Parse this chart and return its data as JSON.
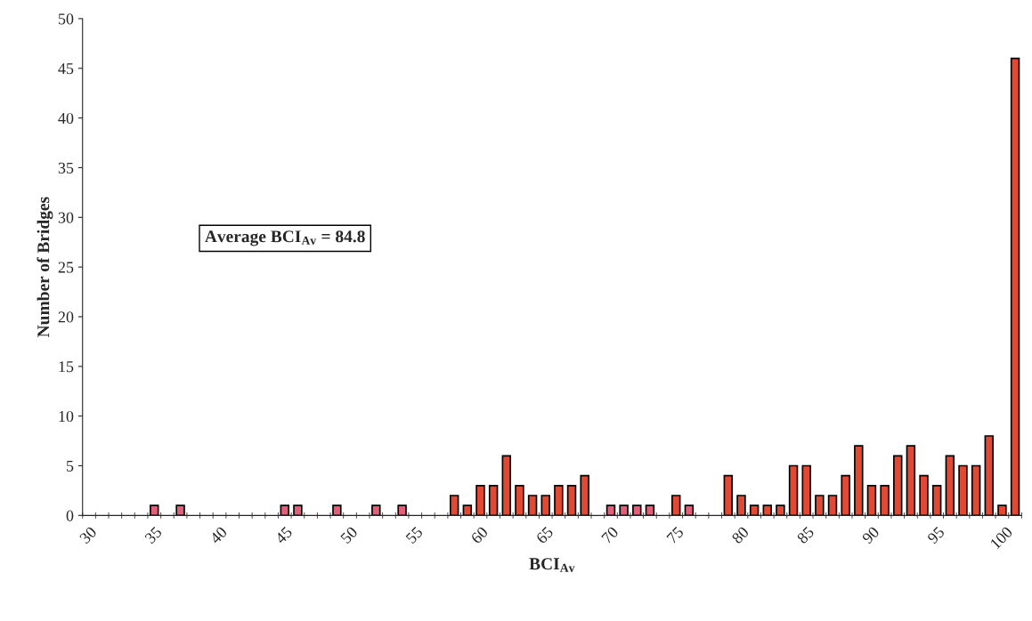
{
  "chart_data": {
    "type": "bar",
    "categories": [
      "30",
      null,
      null,
      null,
      null,
      "35",
      null,
      null,
      null,
      null,
      "40",
      null,
      null,
      null,
      null,
      "45",
      null,
      null,
      null,
      null,
      "50",
      null,
      null,
      null,
      null,
      "55",
      null,
      null,
      null,
      null,
      "60",
      null,
      null,
      null,
      null,
      "65",
      null,
      null,
      null,
      null,
      "70",
      null,
      null,
      null,
      null,
      "75",
      null,
      null,
      null,
      null,
      "80",
      null,
      null,
      null,
      null,
      "85",
      null,
      null,
      null,
      null,
      "90",
      null,
      null,
      null,
      null,
      "95",
      null,
      null,
      null,
      null,
      "100",
      null
    ],
    "values": [
      0,
      0,
      0,
      0,
      0,
      1,
      0,
      1,
      0,
      0,
      0,
      0,
      0,
      0,
      0,
      1,
      1,
      0,
      0,
      1,
      0,
      0,
      1,
      0,
      1,
      0,
      0,
      0,
      2,
      1,
      3,
      3,
      6,
      3,
      2,
      2,
      3,
      3,
      4,
      0,
      1,
      1,
      1,
      1,
      0,
      2,
      1,
      0,
      0,
      4,
      2,
      1,
      1,
      1,
      5,
      5,
      2,
      2,
      4,
      7,
      3,
      3,
      6,
      7,
      4,
      3,
      6,
      5,
      5,
      8,
      1,
      46
    ],
    "colors": [
      "#e04a35",
      "#e04a35",
      "#e04a35",
      "#e04a35",
      "#e04a35",
      "#e0607a",
      "#e04a35",
      "#e0607a",
      "#e04a35",
      "#e04a35",
      "#e04a35",
      "#e04a35",
      "#e04a35",
      "#e04a35",
      "#e04a35",
      "#e0607a",
      "#e0607a",
      "#e04a35",
      "#e04a35",
      "#e0607a",
      "#e04a35",
      "#e04a35",
      "#e0607a",
      "#e04a35",
      "#e0607a",
      "#e04a35",
      "#e04a35",
      "#e04a35",
      "#e04a35",
      "#e04a35",
      "#e04a35",
      "#e04a35",
      "#e04a35",
      "#e04a35",
      "#e04a35",
      "#e04a35",
      "#e04a35",
      "#e04a35",
      "#e04a35",
      "#e04a35",
      "#e0607a",
      "#e0607a",
      "#e0607a",
      "#e0607a",
      "#e04a35",
      "#e04a35",
      "#e0607a",
      "#e04a35",
      "#e04a35",
      "#e04a35",
      "#e04a35",
      "#e04a35",
      "#e04a35",
      "#e04a35",
      "#e04a35",
      "#e04a35",
      "#e04a35",
      "#e04a35",
      "#e04a35",
      "#e04a35",
      "#e04a35",
      "#e04a35",
      "#e04a35",
      "#e04a35",
      "#e04a35",
      "#e04a35",
      "#e04a35",
      "#e04a35",
      "#e04a35",
      "#e04a35",
      "#e04a35",
      "#e04a35"
    ],
    "xlabel": "BCI$_{Av}$",
    "ylabel": "Number of Bridges",
    "annotations": [
      "Average BCI$_{Av}$ = 84.8"
    ],
    "ylim": [
      0,
      50
    ],
    "yticks": [
      0,
      5,
      10,
      15,
      20,
      25,
      30,
      35,
      40,
      45,
      50
    ],
    "grid": false,
    "legend": false
  }
}
